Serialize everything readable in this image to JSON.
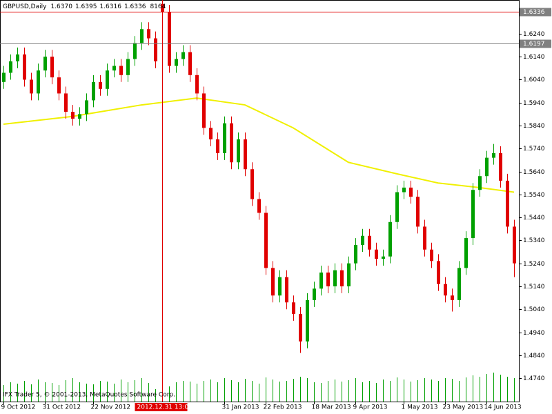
{
  "chart_data": {
    "type": "candlestick",
    "header": {
      "symbol": "GBPUSD,Daily",
      "values": [
        "1.6370",
        "1.6395",
        "1.6316",
        "1.6336"
      ],
      "volume": 8164
    },
    "copyright": "IFX Trader 5, © 2001-2013, MetaQuotes Software Corp.",
    "xlim": [
      -0.5,
      74.7
    ],
    "ylim": [
      1.4638,
      1.6387
    ],
    "yticks": [
      {
        "value": 1.624,
        "label": "1.6240"
      },
      {
        "value": 1.614,
        "label": "1.6140"
      },
      {
        "value": 1.604,
        "label": "1.6040"
      },
      {
        "value": 1.594,
        "label": "1.5940"
      },
      {
        "value": 1.584,
        "label": "1.5840"
      },
      {
        "value": 1.574,
        "label": "1.5740"
      },
      {
        "value": 1.564,
        "label": "1.5640"
      },
      {
        "value": 1.554,
        "label": "1.5540"
      },
      {
        "value": 1.544,
        "label": "1.5440"
      },
      {
        "value": 1.534,
        "label": "1.5340"
      },
      {
        "value": 1.524,
        "label": "1.5240"
      },
      {
        "value": 1.514,
        "label": "1.5140"
      },
      {
        "value": 1.504,
        "label": "1.5040"
      },
      {
        "value": 1.494,
        "label": "1.4940"
      },
      {
        "value": 1.484,
        "label": "1.4840"
      },
      {
        "value": 1.474,
        "label": "1.4740"
      }
    ],
    "xticks": [
      {
        "value": 0,
        "label": "9 Oct 2012"
      },
      {
        "value": 6,
        "label": "31 Oct 2012"
      },
      {
        "value": 13,
        "label": "22 Nov 2012"
      },
      {
        "value": 32,
        "label": "31 Jan 2013"
      },
      {
        "value": 38,
        "label": "22 Feb 2013"
      },
      {
        "value": 45,
        "label": "18 Mar 2013"
      },
      {
        "value": 51,
        "label": "9 Apr 2013"
      },
      {
        "value": 58,
        "label": "1 May 2013"
      },
      {
        "value": 64,
        "label": "23 May 2013"
      },
      {
        "value": 70,
        "label": "14 Jun 2013"
      }
    ],
    "up_color": "#00a000",
    "down_color": "#e00000",
    "open": [
      1.603,
      1.607,
      1.612,
      1.615,
      1.604,
      1.598,
      1.608,
      1.614,
      1.605,
      1.598,
      1.59,
      1.587,
      1.589,
      1.595,
      1.603,
      1.6,
      1.608,
      1.61,
      1.606,
      1.613,
      1.62,
      1.626,
      1.622,
      1.637,
      1.6336,
      1.61,
      1.613,
      1.616,
      1.606,
      1.598,
      1.583,
      1.578,
      1.572,
      1.585,
      1.568,
      1.578,
      1.565,
      1.552,
      1.546,
      1.522,
      1.51,
      1.518,
      1.507,
      1.502,
      1.49,
      1.508,
      1.513,
      1.52,
      1.514,
      1.521,
      1.514,
      1.524,
      1.532,
      1.536,
      1.53,
      1.526,
      1.527,
      1.542,
      1.555,
      1.557,
      1.553,
      1.54,
      1.53,
      1.525,
      1.515,
      1.51,
      1.508,
      1.522,
      1.535,
      1.556,
      1.562,
      1.57,
      1.572,
      1.56,
      1.54
    ],
    "high": [
      1.61,
      1.615,
      1.618,
      1.618,
      1.607,
      1.611,
      1.617,
      1.617,
      1.608,
      1.601,
      1.593,
      1.592,
      1.598,
      1.606,
      1.606,
      1.611,
      1.613,
      1.613,
      1.616,
      1.623,
      1.629,
      1.629,
      1.625,
      1.6395,
      1.6366,
      1.616,
      1.619,
      1.619,
      1.609,
      1.601,
      1.586,
      1.581,
      1.588,
      1.588,
      1.581,
      1.581,
      1.568,
      1.555,
      1.549,
      1.525,
      1.521,
      1.521,
      1.51,
      1.505,
      1.511,
      1.516,
      1.523,
      1.523,
      1.524,
      1.524,
      1.527,
      1.535,
      1.539,
      1.539,
      1.533,
      1.53,
      1.545,
      1.558,
      1.56,
      1.56,
      1.556,
      1.543,
      1.533,
      1.528,
      1.518,
      1.513,
      1.525,
      1.538,
      1.559,
      1.565,
      1.573,
      1.576,
      1.575,
      1.563,
      1.543
    ],
    "low": [
      1.6,
      1.604,
      1.609,
      1.601,
      1.595,
      1.595,
      1.605,
      1.602,
      1.595,
      1.587,
      1.584,
      1.584,
      1.586,
      1.592,
      1.597,
      1.597,
      1.605,
      1.603,
      1.603,
      1.61,
      1.617,
      1.619,
      1.609,
      1.6316,
      1.607,
      1.607,
      1.61,
      1.603,
      1.595,
      1.58,
      1.575,
      1.569,
      1.569,
      1.565,
      1.565,
      1.562,
      1.549,
      1.543,
      1.519,
      1.507,
      1.507,
      1.504,
      1.499,
      1.485,
      1.487,
      1.505,
      1.51,
      1.511,
      1.511,
      1.511,
      1.511,
      1.521,
      1.529,
      1.527,
      1.523,
      1.523,
      1.524,
      1.539,
      1.552,
      1.55,
      1.537,
      1.527,
      1.522,
      1.512,
      1.507,
      1.503,
      1.505,
      1.519,
      1.532,
      1.553,
      1.559,
      1.567,
      1.557,
      1.537,
      1.518
    ],
    "close": [
      1.607,
      1.612,
      1.615,
      1.604,
      1.598,
      1.608,
      1.614,
      1.605,
      1.598,
      1.59,
      1.587,
      1.589,
      1.595,
      1.603,
      1.6,
      1.608,
      1.61,
      1.606,
      1.613,
      1.62,
      1.626,
      1.622,
      1.612,
      1.6336,
      1.61,
      1.613,
      1.616,
      1.606,
      1.598,
      1.583,
      1.578,
      1.572,
      1.585,
      1.568,
      1.578,
      1.565,
      1.552,
      1.546,
      1.522,
      1.51,
      1.518,
      1.507,
      1.502,
      1.49,
      1.508,
      1.513,
      1.52,
      1.514,
      1.521,
      1.514,
      1.524,
      1.532,
      1.536,
      1.53,
      1.526,
      1.527,
      1.542,
      1.555,
      1.557,
      1.553,
      1.54,
      1.53,
      1.525,
      1.515,
      1.51,
      1.508,
      1.522,
      1.535,
      1.556,
      1.562,
      1.57,
      1.572,
      1.56,
      1.54,
      1.524
    ],
    "volume_color": "#00a000",
    "volume_lim": [
      0,
      60000
    ],
    "volume": [
      12000,
      14000,
      13000,
      15000,
      12500,
      16000,
      14000,
      13500,
      12000,
      15500,
      17000,
      14000,
      13000,
      12500,
      15000,
      14500,
      13000,
      16000,
      14000,
      15500,
      17000,
      13500,
      9000,
      8164,
      11000,
      14000,
      15000,
      14500,
      13000,
      15000,
      16000,
      14000,
      17000,
      15500,
      14000,
      16500,
      15000,
      13000,
      17500,
      16000,
      14500,
      15000,
      16500,
      18000,
      17000,
      14000,
      13500,
      15000,
      16000,
      14500,
      15500,
      17000,
      14000,
      15000,
      13500,
      16000,
      15000,
      17500,
      16000,
      14500,
      15500,
      17000,
      16000,
      15000,
      17000,
      16500,
      15000,
      17500,
      19000,
      18000,
      20000,
      21000,
      19500,
      18000,
      17000
    ],
    "ma": {
      "name": "MA",
      "color": "#f0f000",
      "x": [
        0,
        10,
        20,
        28,
        35,
        42,
        50,
        57,
        63,
        69,
        74
      ],
      "values": [
        1.5846,
        1.588,
        1.593,
        1.596,
        1.593,
        1.583,
        1.568,
        1.563,
        1.559,
        1.557,
        1.555
      ]
    },
    "price_lines": [
      {
        "value": 1.6336,
        "label": "1.6336",
        "color": "#e00000"
      },
      {
        "value": 1.6197,
        "label": "1.6197",
        "color": "#808080"
      }
    ],
    "crosshair": {
      "x": 23,
      "label": "2012.12.31 13:00",
      "color": "#e00000"
    }
  }
}
